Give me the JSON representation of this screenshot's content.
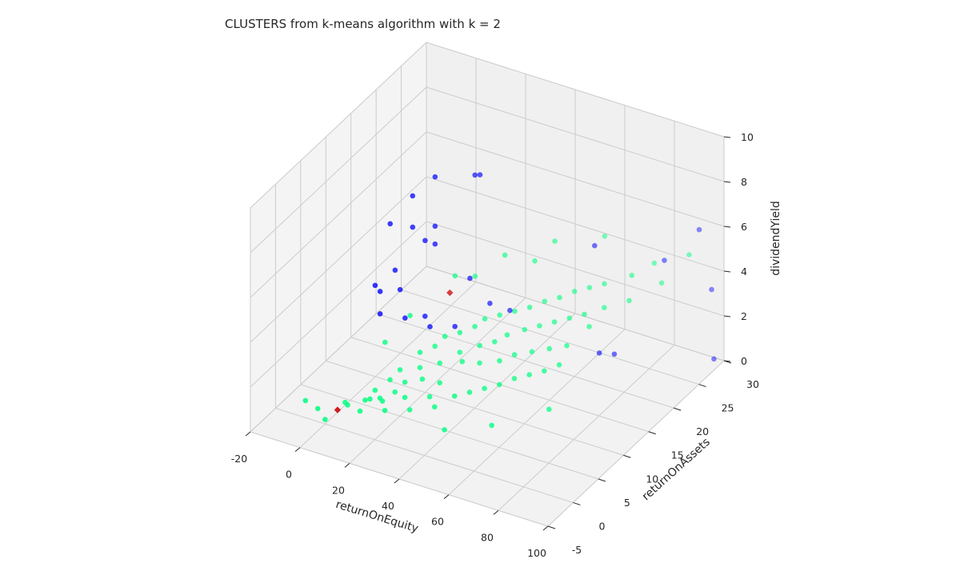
{
  "chart_data": {
    "type": "scatter",
    "title": "CLUSTERS from k-means algorithm with k = 2",
    "xlabel": "returnOnEquity",
    "ylabel": "returnOnAssets",
    "zlabel": "dividendYield",
    "xlim": [
      -20,
      100
    ],
    "ylim": [
      -5,
      30
    ],
    "zlim": [
      0,
      10
    ],
    "x_ticks": [
      -20,
      0,
      20,
      40,
      60,
      80,
      100
    ],
    "y_ticks": [
      -5,
      0,
      5,
      10,
      15,
      20,
      25,
      30
    ],
    "z_ticks": [
      0,
      2,
      4,
      6,
      8,
      10
    ],
    "grid": true,
    "colors": {
      "cluster_0": "#00ff80",
      "cluster_1": "#0000ff",
      "centroid": "#cc0000",
      "pane": "#f2f2f2",
      "grid": "#cccccc"
    },
    "series": [
      {
        "marker": "circle",
        "points": [
          [
            -12,
            2,
            0.2
          ],
          [
            -5,
            1,
            0.3
          ],
          [
            0,
            0,
            0.2
          ],
          [
            2,
            3,
            0.4
          ],
          [
            5,
            2,
            0.6
          ],
          [
            8,
            4,
            0.5
          ],
          [
            10,
            5,
            0.8
          ],
          [
            12,
            3,
            0.9
          ],
          [
            14,
            6,
            1.2
          ],
          [
            15,
            4,
            0.7
          ],
          [
            16,
            7,
            1.5
          ],
          [
            18,
            5,
            1.0
          ],
          [
            20,
            6,
            1.3
          ],
          [
            20,
            9,
            2.0
          ],
          [
            22,
            8,
            1.6
          ],
          [
            24,
            10,
            2.2
          ],
          [
            25,
            7,
            1.4
          ],
          [
            26,
            11,
            2.5
          ],
          [
            28,
            9,
            1.8
          ],
          [
            30,
            12,
            2.6
          ],
          [
            30,
            8,
            1.2
          ],
          [
            32,
            11,
            2.0
          ],
          [
            34,
            13,
            2.8
          ],
          [
            35,
            10,
            1.9
          ],
          [
            36,
            14,
            3.0
          ],
          [
            38,
            12,
            2.3
          ],
          [
            40,
            15,
            3.1
          ],
          [
            40,
            11,
            1.8
          ],
          [
            42,
            13,
            2.4
          ],
          [
            44,
            16,
            3.2
          ],
          [
            45,
            14,
            2.6
          ],
          [
            46,
            12,
            1.9
          ],
          [
            48,
            17,
            3.3
          ],
          [
            50,
            15,
            2.8
          ],
          [
            50,
            13,
            2.1
          ],
          [
            52,
            18,
            3.5
          ],
          [
            54,
            16,
            2.9
          ],
          [
            55,
            14,
            2.2
          ],
          [
            56,
            19,
            3.6
          ],
          [
            58,
            17,
            3.0
          ],
          [
            60,
            15,
            2.3
          ],
          [
            60,
            20,
            3.8
          ],
          [
            62,
            18,
            3.1
          ],
          [
            64,
            21,
            3.9
          ],
          [
            65,
            16,
            2.4
          ],
          [
            66,
            19,
            3.2
          ],
          [
            68,
            22,
            4.0
          ],
          [
            70,
            18,
            3.0
          ],
          [
            72,
            20,
            3.5
          ],
          [
            75,
            24,
            4.2
          ],
          [
            78,
            22,
            3.6
          ],
          [
            80,
            26,
            4.5
          ],
          [
            85,
            25,
            4.0
          ],
          [
            90,
            28,
            4.8
          ],
          [
            10,
            2,
            0.5
          ],
          [
            14,
            4,
            0.8
          ],
          [
            18,
            3,
            0.6
          ],
          [
            22,
            5,
            0.9
          ],
          [
            26,
            4,
            0.7
          ],
          [
            30,
            6,
            1.0
          ],
          [
            34,
            5,
            0.9
          ],
          [
            38,
            7,
            1.1
          ],
          [
            42,
            8,
            1.2
          ],
          [
            46,
            9,
            1.3
          ],
          [
            50,
            10,
            1.4
          ],
          [
            54,
            11,
            1.6
          ],
          [
            58,
            12,
            1.7
          ],
          [
            62,
            13,
            1.8
          ],
          [
            66,
            14,
            2.0
          ],
          [
            24,
            14,
            4.5
          ],
          [
            36,
            18,
            5.0
          ],
          [
            48,
            22,
            5.2
          ],
          [
            60,
            26,
            5.0
          ],
          [
            12,
            6,
            2.8
          ],
          [
            16,
            9,
            3.5
          ],
          [
            40,
            4,
            0.3
          ],
          [
            55,
            6,
            0.6
          ],
          [
            70,
            10,
            1.0
          ],
          [
            28,
            16,
            4.2
          ],
          [
            44,
            20,
            4.6
          ]
        ]
      },
      {
        "marker": "circle",
        "points": [
          [
            15,
            10,
            8.6
          ],
          [
            20,
            12,
            9.2
          ],
          [
            30,
            15,
            9.0
          ],
          [
            30,
            16,
            8.8
          ],
          [
            10,
            8,
            7.6
          ],
          [
            15,
            10,
            7.2
          ],
          [
            20,
            12,
            7.0
          ],
          [
            18,
            11,
            6.5
          ],
          [
            20,
            12,
            6.2
          ],
          [
            12,
            8,
            5.6
          ],
          [
            8,
            6,
            5.2
          ],
          [
            10,
            6,
            5.0
          ],
          [
            14,
            8,
            4.8
          ],
          [
            10,
            6,
            4.0
          ],
          [
            16,
            8,
            3.6
          ],
          [
            20,
            10,
            3.4
          ],
          [
            30,
            14,
            4.6
          ],
          [
            22,
            10,
            3.0
          ],
          [
            28,
            12,
            2.8
          ],
          [
            34,
            16,
            3.2
          ],
          [
            38,
            18,
            2.6
          ],
          [
            60,
            24,
            5.0
          ],
          [
            90,
            30,
            5.5
          ],
          [
            80,
            28,
            4.2
          ],
          [
            95,
            30,
            3.0
          ],
          [
            70,
            20,
            1.4
          ],
          [
            72,
            22,
            1.0
          ],
          [
            100,
            28,
            0.5
          ]
        ]
      },
      {
        "marker": "diamond",
        "points": [
          [
            30,
            10,
            4.8
          ],
          [
            5,
            0,
            0.8
          ]
        ]
      }
    ]
  }
}
